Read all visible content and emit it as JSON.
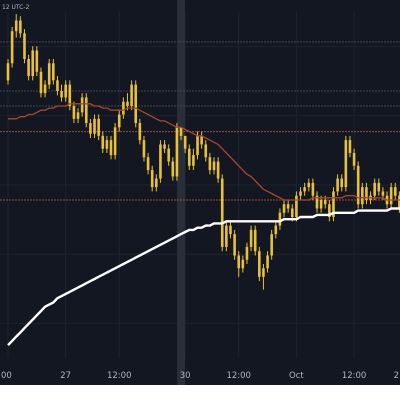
{
  "header": {
    "timezone_text": "12 UTC-2"
  },
  "chart_data": {
    "type": "candlestick",
    "title": "",
    "xlabel": "",
    "ylabel": "",
    "x_tick_labels": [
      "00",
      "27",
      "12:00",
      "30",
      "12:00",
      "Oct",
      "12:00",
      "2"
    ],
    "x_tick_index": [
      0,
      14,
      27,
      43,
      56,
      70,
      84,
      97
    ],
    "x_highlight_index": 42,
    "ylim": [
      0,
      100
    ],
    "grid": true,
    "horizontal_levels": [
      {
        "value": 36,
        "color": "#a54a2e"
      },
      {
        "value": 4,
        "color": "#a54a2e"
      },
      {
        "value": 78,
        "color": "#434651"
      },
      {
        "value": 48,
        "color": "#434651"
      },
      {
        "value": 55,
        "color": "#434651"
      }
    ],
    "candles": {
      "open": [
        60,
        68,
        83,
        88,
        82,
        70,
        62,
        74,
        64,
        54,
        58,
        68,
        60,
        55,
        52,
        58,
        48,
        42,
        45,
        52,
        40,
        35,
        42,
        34,
        28,
        32,
        25,
        38,
        44,
        50,
        48,
        58,
        40,
        32,
        24,
        18,
        10,
        14,
        30,
        28,
        22,
        15,
        38,
        34,
        28,
        20,
        25,
        34,
        30,
        24,
        18,
        22,
        14,
        -18,
        -8,
        -12,
        -22,
        -28,
        -24,
        -18,
        -10,
        -20,
        -32,
        -28,
        -22,
        -12,
        -8,
        -2,
        2,
        0,
        -4,
        6,
        8,
        10,
        12,
        6,
        0,
        4,
        2,
        -4,
        8,
        14,
        10,
        32,
        26,
        20,
        2,
        10,
        4,
        6,
        12,
        8,
        6,
        2,
        10,
        6,
        0
      ],
      "close": [
        68,
        83,
        88,
        82,
        70,
        62,
        74,
        64,
        54,
        58,
        68,
        60,
        55,
        52,
        58,
        48,
        42,
        45,
        52,
        40,
        35,
        42,
        34,
        28,
        32,
        25,
        38,
        44,
        50,
        48,
        58,
        40,
        32,
        24,
        18,
        10,
        14,
        30,
        28,
        22,
        15,
        38,
        34,
        28,
        20,
        25,
        34,
        30,
        24,
        18,
        22,
        14,
        -18,
        -8,
        -12,
        -22,
        -28,
        -24,
        -18,
        -10,
        -20,
        -32,
        -28,
        -22,
        -12,
        -8,
        -2,
        2,
        0,
        -4,
        6,
        8,
        10,
        12,
        6,
        0,
        4,
        2,
        -4,
        8,
        14,
        10,
        32,
        26,
        20,
        2,
        10,
        4,
        6,
        12,
        8,
        6,
        2,
        10,
        6,
        0,
        4
      ],
      "high": [
        70,
        85,
        91,
        90,
        84,
        72,
        76,
        76,
        66,
        60,
        70,
        70,
        62,
        58,
        60,
        60,
        50,
        47,
        54,
        54,
        42,
        44,
        44,
        36,
        34,
        34,
        40,
        46,
        52,
        54,
        60,
        60,
        42,
        34,
        26,
        20,
        16,
        32,
        32,
        30,
        24,
        40,
        36,
        30,
        30,
        28,
        36,
        36,
        32,
        26,
        24,
        24,
        16,
        -6,
        -6,
        -10,
        -20,
        -22,
        -16,
        -8,
        -8,
        -18,
        -26,
        -20,
        -10,
        -6,
        0,
        4,
        4,
        2,
        8,
        10,
        12,
        14,
        14,
        8,
        6,
        6,
        4,
        10,
        16,
        16,
        34,
        34,
        28,
        22,
        12,
        12,
        8,
        14,
        14,
        10,
        8,
        12,
        12,
        8,
        6
      ],
      "low": [
        58,
        66,
        80,
        80,
        68,
        60,
        60,
        62,
        52,
        52,
        56,
        58,
        53,
        50,
        50,
        46,
        40,
        40,
        43,
        38,
        33,
        33,
        32,
        26,
        26,
        23,
        23,
        36,
        42,
        46,
        46,
        38,
        30,
        22,
        16,
        8,
        8,
        12,
        26,
        20,
        13,
        13,
        32,
        26,
        18,
        18,
        23,
        28,
        22,
        16,
        16,
        12,
        -20,
        -20,
        -14,
        -24,
        -32,
        -30,
        -26,
        -20,
        -22,
        -34,
        -38,
        -30,
        -24,
        -14,
        -10,
        -4,
        -2,
        -6,
        -6,
        4,
        6,
        8,
        4,
        -2,
        -2,
        0,
        -6,
        -6,
        6,
        8,
        8,
        24,
        18,
        0,
        0,
        2,
        2,
        4,
        6,
        4,
        0,
        0,
        4,
        -2,
        -2
      ]
    },
    "moving_averages": [
      {
        "color": "#a5492a",
        "values": [
          42,
          42,
          42,
          43,
          43,
          44,
          44,
          45,
          46,
          46,
          47,
          47,
          48,
          48,
          48,
          49,
          49,
          49,
          49,
          49,
          49,
          48,
          48,
          47,
          47,
          46,
          46,
          46,
          46,
          47,
          47,
          47,
          46,
          45,
          44,
          43,
          42,
          41,
          41,
          40,
          39,
          38,
          38,
          37,
          36,
          35,
          34,
          34,
          33,
          32,
          31,
          30,
          28,
          26,
          24,
          22,
          20,
          18,
          16,
          15,
          13,
          11,
          9,
          8,
          7,
          6,
          5,
          4,
          4,
          4,
          4,
          4,
          4,
          4,
          5,
          5,
          5,
          5,
          5,
          5,
          5,
          5,
          6,
          6,
          6,
          5,
          5,
          5,
          5,
          5,
          5,
          5,
          4,
          4,
          4,
          4,
          4,
          4
        ]
      },
      {
        "color": "#ffffff",
        "values": [
          -64,
          -62,
          -60,
          -58,
          -56,
          -54,
          -52,
          -50,
          -48,
          -46,
          -45,
          -44,
          -42,
          -41,
          -40,
          -39,
          -38,
          -37,
          -36,
          -35,
          -34,
          -33,
          -32,
          -31,
          -30,
          -29,
          -28,
          -27,
          -26,
          -25,
          -24,
          -23,
          -22,
          -21,
          -20,
          -19,
          -18,
          -17,
          -16,
          -15,
          -14,
          -13,
          -12,
          -11,
          -10,
          -10,
          -9,
          -9,
          -8,
          -8,
          -7,
          -7,
          -7,
          -6,
          -6,
          -6,
          -6,
          -6,
          -6,
          -6,
          -6,
          -6,
          -6,
          -6,
          -6,
          -6,
          -6,
          -5,
          -5,
          -5,
          -5,
          -4,
          -4,
          -4,
          -4,
          -3,
          -3,
          -3,
          -3,
          -2,
          -2,
          -2,
          -2,
          -2,
          -2,
          -1,
          -1,
          -1,
          -1,
          -1,
          -1,
          -1,
          -1,
          0,
          0,
          0,
          0,
          0
        ]
      }
    ],
    "colors": {
      "background": "#131722",
      "grid": "#1f2330",
      "candle": "#e8c13a",
      "wick": "#e8c13a",
      "highlight_band": "#2a2e39"
    }
  }
}
